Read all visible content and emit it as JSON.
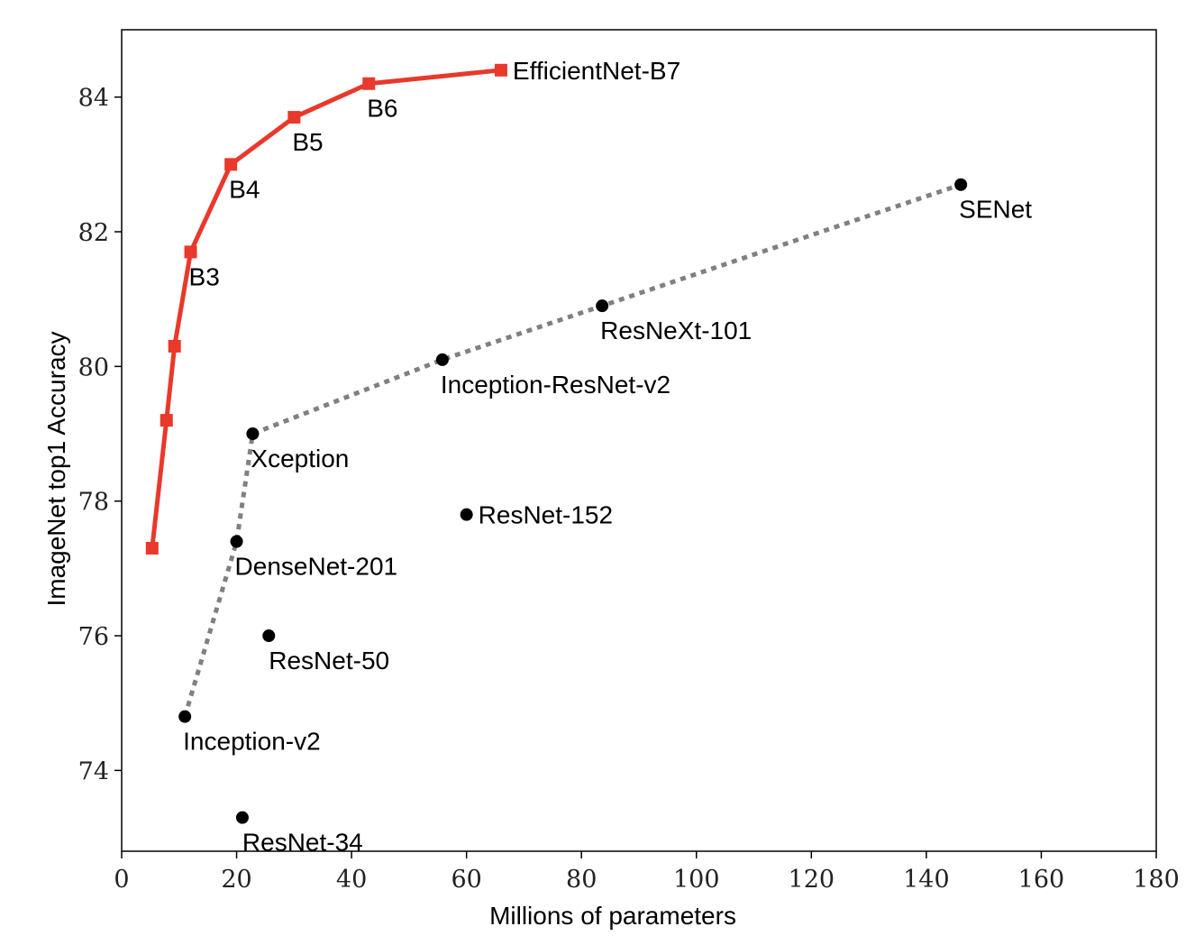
{
  "chart_data": {
    "type": "scatter",
    "xlabel": "Millions of parameters",
    "ylabel": "ImageNet top1 Accuracy",
    "xlim": [
      0,
      180
    ],
    "ylim": [
      72.8,
      85
    ],
    "xticks": [
      0,
      20,
      40,
      60,
      80,
      100,
      120,
      140,
      160,
      180
    ],
    "yticks": [
      74,
      76,
      78,
      80,
      82,
      84
    ],
    "grid": false,
    "legend": "none",
    "colors": {
      "efficientnet": "#e8392b",
      "frontier": "#808080",
      "points": "#000000"
    },
    "series": [
      {
        "name": "",
        "style": "red-line-square-markers",
        "points": [
          {
            "x": 5.3,
            "y": 77.3,
            "label": ""
          },
          {
            "x": 7.8,
            "y": 79.2,
            "label": ""
          },
          {
            "x": 9.2,
            "y": 80.3,
            "label": ""
          },
          {
            "x": 12,
            "y": 81.7,
            "label": "B3"
          },
          {
            "x": 19,
            "y": 83.0,
            "label": "B4"
          },
          {
            "x": 30,
            "y": 83.7,
            "label": "B5"
          },
          {
            "x": 43,
            "y": 84.2,
            "label": "B6"
          },
          {
            "x": 66,
            "y": 84.4,
            "label": "EfficientNet-B7"
          }
        ]
      },
      {
        "name": "",
        "style": "gray-dotted-line",
        "points": [
          {
            "x": 11,
            "y": 74.8
          },
          {
            "x": 20,
            "y": 77.4
          },
          {
            "x": 22.8,
            "y": 79.0
          },
          {
            "x": 55.8,
            "y": 80.1
          },
          {
            "x": 83.6,
            "y": 80.9
          },
          {
            "x": 146,
            "y": 82.7
          }
        ]
      },
      {
        "name": "",
        "style": "black-dots",
        "points": [
          {
            "x": 11,
            "y": 74.8,
            "label": "Inception-v2"
          },
          {
            "x": 20,
            "y": 77.4,
            "label": "DenseNet-201"
          },
          {
            "x": 22.8,
            "y": 79.0,
            "label": "Xception"
          },
          {
            "x": 55.8,
            "y": 80.1,
            "label": "Inception-ResNet-v2"
          },
          {
            "x": 83.6,
            "y": 80.9,
            "label": "ResNeXt-101"
          },
          {
            "x": 146,
            "y": 82.7,
            "label": "SENet"
          },
          {
            "x": 60,
            "y": 77.8,
            "label": "ResNet-152"
          },
          {
            "x": 25.6,
            "y": 76.0,
            "label": "ResNet-50"
          },
          {
            "x": 21,
            "y": 73.3,
            "label": "ResNet-34"
          }
        ]
      }
    ]
  }
}
